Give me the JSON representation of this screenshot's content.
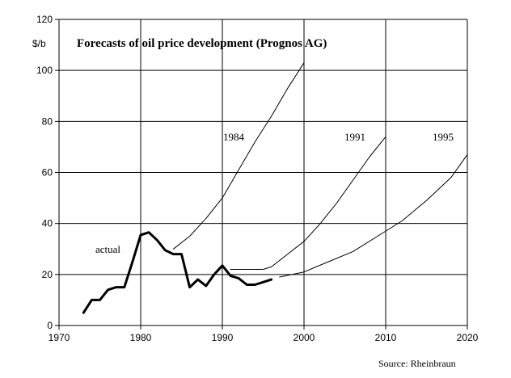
{
  "chart_data": {
    "type": "line",
    "title": "Forecasts of oil price development (Prognos AG)",
    "ylabel": "$/b",
    "xlabel": "",
    "xlim": [
      1970,
      2020
    ],
    "ylim": [
      0,
      120
    ],
    "x_ticks": [
      1970,
      1980,
      1990,
      2000,
      2010,
      2020
    ],
    "y_ticks": [
      0,
      20,
      40,
      60,
      80,
      100,
      120
    ],
    "grid": "horizontal and vertical",
    "source": "Source: Rheinbraun",
    "series": [
      {
        "name": "actual",
        "label": "actual",
        "style": "bold",
        "x": [
          1973,
          1974,
          1975,
          1976,
          1977,
          1978,
          1979,
          1980,
          1981,
          1982,
          1983,
          1984,
          1985,
          1986,
          1987,
          1988,
          1989,
          1990,
          1991,
          1992,
          1993,
          1994,
          1995,
          1996
        ],
        "y": [
          5,
          10,
          10,
          14,
          15,
          15,
          25,
          35.5,
          36.5,
          33.5,
          29.5,
          28,
          28,
          15,
          18,
          15.5,
          20,
          23.5,
          19.5,
          18.5,
          16,
          16,
          17,
          18
        ]
      },
      {
        "name": "1984",
        "label": "1984",
        "style": "thin",
        "x": [
          1984,
          1986,
          1988,
          1990,
          1992,
          1994,
          1996,
          1998,
          2000
        ],
        "y": [
          30,
          35,
          42,
          50,
          61,
          72,
          82,
          93,
          103
        ]
      },
      {
        "name": "1991",
        "label": "1991",
        "style": "thin",
        "x": [
          1991,
          1993,
          1995,
          1996,
          1998,
          2000,
          2002,
          2004,
          2006,
          2008,
          2010
        ],
        "y": [
          22,
          22,
          22,
          23,
          28,
          33,
          40,
          48,
          57,
          66,
          74
        ]
      },
      {
        "name": "1995",
        "label": "1995",
        "style": "thin",
        "x": [
          1997,
          2000,
          2003,
          2006,
          2009,
          2012,
          2015,
          2018,
          2020
        ],
        "y": [
          19,
          21,
          25,
          29,
          35,
          41,
          49,
          58,
          67
        ]
      }
    ]
  }
}
